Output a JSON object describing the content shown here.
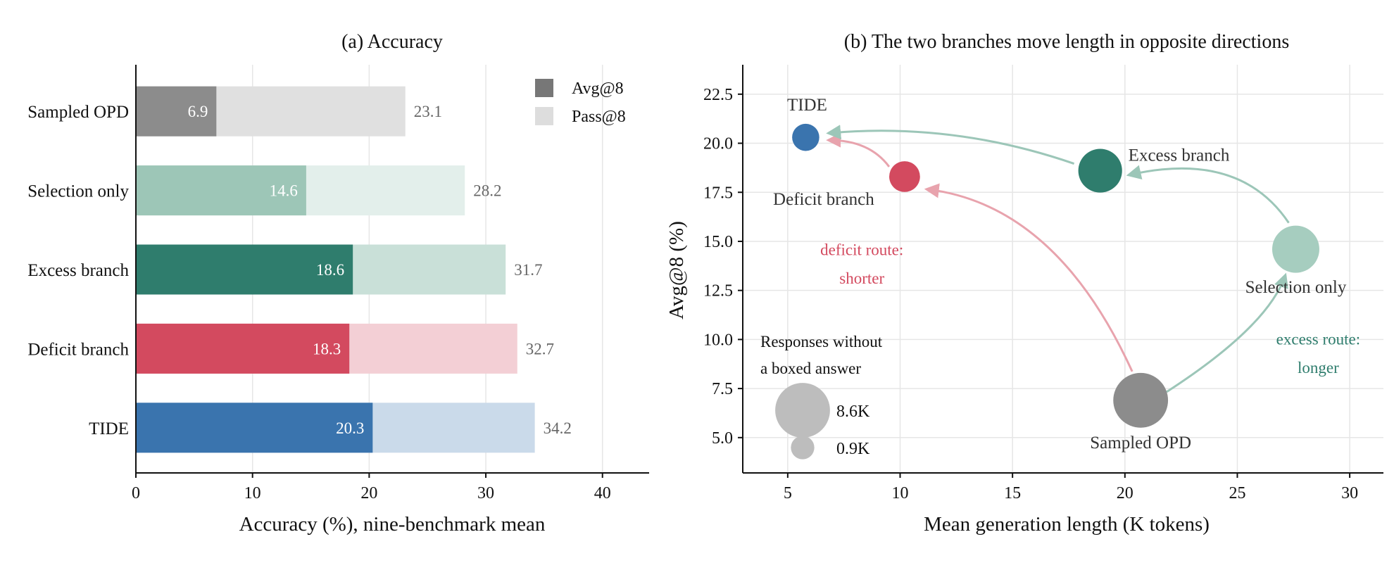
{
  "chart_data": [
    {
      "type": "bar",
      "title": "(a) Accuracy",
      "xlabel": "Accuracy (%), nine-benchmark mean",
      "ylabel": "",
      "xlim": [
        0,
        44
      ],
      "xticks": [
        0,
        10,
        20,
        30,
        40
      ],
      "grid": "vertical",
      "legend_position": "top-right",
      "series": [
        {
          "name": "Avg@8",
          "legend_color": "#777777",
          "values": [
            6.9,
            14.6,
            18.6,
            18.3,
            20.3
          ]
        },
        {
          "name": "Pass@8",
          "legend_color": "#dddddd",
          "values": [
            23.1,
            28.2,
            31.7,
            32.7,
            34.2
          ]
        }
      ],
      "categories": [
        "Sampled OPD",
        "Selection only",
        "Excess branch",
        "Deficit branch",
        "TIDE"
      ],
      "avg_labels": [
        "6.9",
        "14.6",
        "18.6",
        "18.3",
        "20.3"
      ],
      "pass_labels": [
        "23.1",
        "28.2",
        "31.7",
        "32.7",
        "34.2"
      ],
      "colors": [
        {
          "solid": "#8c8c8c",
          "light": "#e0e0e0"
        },
        {
          "solid": "#9dc6b7",
          "light": "#e3efeb"
        },
        {
          "solid": "#2f7d6d",
          "light": "#c9e0d8"
        },
        {
          "solid": "#d34a5f",
          "light": "#f3cfd5"
        },
        {
          "solid": "#3a74ae",
          "light": "#cadaea"
        }
      ]
    },
    {
      "type": "scatter",
      "title": "(b) The two branches move length in opposite directions",
      "xlabel": "Mean generation length (K tokens)",
      "ylabel": "Avg@8 (%)",
      "xlim": [
        3,
        31.5
      ],
      "ylim": [
        3.2,
        24
      ],
      "xticks": [
        5,
        10,
        15,
        20,
        25,
        30
      ],
      "yticks": [
        "5.0",
        "7.5",
        "10.0",
        "12.5",
        "15.0",
        "17.5",
        "20.0",
        "22.5"
      ],
      "grid": "both",
      "points": [
        {
          "label": "Sampled OPD",
          "x": 20.7,
          "y": 6.9,
          "responses_k": 8.6,
          "color": "#8c8c8c"
        },
        {
          "label": "Selection only",
          "x": 27.6,
          "y": 14.6,
          "responses_k": 6.0,
          "color": "#a6cdbf"
        },
        {
          "label": "Excess branch",
          "x": 18.9,
          "y": 18.6,
          "responses_k": 5.0,
          "color": "#2f7d6d"
        },
        {
          "label": "Deficit branch",
          "x": 10.2,
          "y": 18.3,
          "responses_k": 2.0,
          "color": "#d34a5f"
        },
        {
          "label": "TIDE",
          "x": 5.8,
          "y": 20.3,
          "responses_k": 1.4,
          "color": "#3a74ae"
        }
      ],
      "annotations": {
        "deficit_route": {
          "line1": "deficit route:",
          "line2": "shorter",
          "color": "#d34a5f"
        },
        "excess_route": {
          "line1": "excess route:",
          "line2": "longer",
          "color": "#2f7d6d"
        }
      },
      "size_legend": {
        "title_line1": "Responses without",
        "title_line2": "a boxed answer",
        "entries": [
          {
            "label": "8.6K",
            "value_k": 8.6
          },
          {
            "label": "0.9K",
            "value_k": 0.9
          }
        ]
      }
    }
  ]
}
